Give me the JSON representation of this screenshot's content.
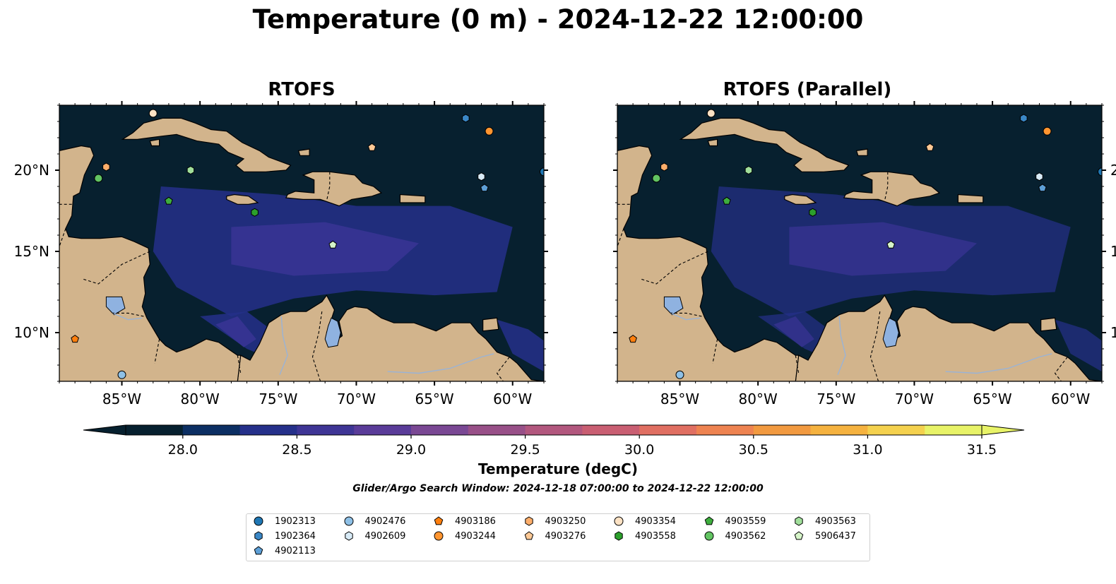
{
  "figure": {
    "title": "Temperature (0 m) - 2024-12-22 12:00:00",
    "search_window": "Glider/Argo Search Window: 2024-12-18 07:00:00 to 2024-12-22 12:00:00"
  },
  "panels": [
    {
      "title": "RTOFS",
      "lat_ticks_side": "left"
    },
    {
      "title": "RTOFS (Parallel)",
      "lat_ticks_side": "right"
    }
  ],
  "map_extent": {
    "lon_min": -89,
    "lon_max": -58,
    "lat_min": 7,
    "lat_max": 24
  },
  "lon_ticks": [
    {
      "value": -85,
      "label": "85°W"
    },
    {
      "value": -80,
      "label": "80°W"
    },
    {
      "value": -75,
      "label": "75°W"
    },
    {
      "value": -70,
      "label": "70°W"
    },
    {
      "value": -65,
      "label": "65°W"
    },
    {
      "value": -60,
      "label": "60°W"
    }
  ],
  "lat_ticks": [
    {
      "value": 20,
      "label": "20°N"
    },
    {
      "value": 15,
      "label": "15°N"
    },
    {
      "value": 10,
      "label": "10°N"
    }
  ],
  "colorbar": {
    "label": "Temperature (degC)",
    "vmin": 27.75,
    "vmax": 31.5,
    "extend": "both",
    "ticks": [
      {
        "value": 28.0,
        "label": "28.0"
      },
      {
        "value": 28.5,
        "label": "28.5"
      },
      {
        "value": 29.0,
        "label": "29.0"
      },
      {
        "value": 29.5,
        "label": "29.5"
      },
      {
        "value": 30.0,
        "label": "30.0"
      },
      {
        "value": 30.5,
        "label": "30.5"
      },
      {
        "value": 31.0,
        "label": "31.0"
      },
      {
        "value": 31.5,
        "label": "31.5"
      }
    ],
    "colors": [
      "#06202f",
      "#0c2f63",
      "#25308a",
      "#3e3595",
      "#5a3c99",
      "#7a4894",
      "#985088",
      "#b2577e",
      "#c95e72",
      "#e06f62",
      "#ee8351",
      "#f29a40",
      "#f5b23f",
      "#f4d14e",
      "#e8f368"
    ],
    "under_color": "#06202f",
    "over_color": "#e8f368"
  },
  "colors": {
    "ocean_cool": "#07202f",
    "ocean_warm": "#3a3595",
    "land": "#d2b48c",
    "lakes": "#8fb2e0"
  },
  "legend": [
    {
      "id": "1902313",
      "marker": "circle",
      "color": "#1f77b4"
    },
    {
      "id": "1902364",
      "marker": "hexagon",
      "color": "#3a87c6"
    },
    {
      "id": "4902113",
      "marker": "pentagon",
      "color": "#5d9fd6"
    },
    {
      "id": "4902476",
      "marker": "circle",
      "color": "#8ec0e6"
    },
    {
      "id": "4902609",
      "marker": "hexagon",
      "color": "#d8ebf7"
    },
    {
      "id": "4903186",
      "marker": "pentagon",
      "color": "#ff7f0e"
    },
    {
      "id": "4903244",
      "marker": "circle",
      "color": "#ff9530"
    },
    {
      "id": "4903250",
      "marker": "hexagon",
      "color": "#fdae6b"
    },
    {
      "id": "4903276",
      "marker": "pentagon",
      "color": "#fdc996"
    },
    {
      "id": "4903354",
      "marker": "circle",
      "color": "#fde2c4"
    },
    {
      "id": "4903558",
      "marker": "hexagon",
      "color": "#2ca02c"
    },
    {
      "id": "4903559",
      "marker": "pentagon",
      "color": "#3eae3e"
    },
    {
      "id": "4903562",
      "marker": "circle",
      "color": "#62c462"
    },
    {
      "id": "4903563",
      "marker": "hexagon",
      "color": "#a1df9b"
    },
    {
      "id": "5906437",
      "marker": "pentagon",
      "color": "#d6f5c9"
    }
  ],
  "floats": [
    {
      "id": "4903354",
      "lon": -83.0,
      "lat": 23.5
    },
    {
      "id": "1902364",
      "lon": -63.0,
      "lat": 23.2
    },
    {
      "id": "4903244",
      "lon": -61.5,
      "lat": 22.4
    },
    {
      "id": "4903276",
      "lon": -69.0,
      "lat": 21.4
    },
    {
      "id": "4903250",
      "lon": -86.0,
      "lat": 20.2
    },
    {
      "id": "4903563",
      "lon": -80.6,
      "lat": 20.0
    },
    {
      "id": "4903562",
      "lon": -86.5,
      "lat": 19.5
    },
    {
      "id": "4902609",
      "lon": -62.0,
      "lat": 19.6
    },
    {
      "id": "1902313",
      "lon": -58.0,
      "lat": 19.9
    },
    {
      "id": "4902113",
      "lon": -61.8,
      "lat": 18.9
    },
    {
      "id": "4903559",
      "lon": -82.0,
      "lat": 18.1
    },
    {
      "id": "4903558",
      "lon": -76.5,
      "lat": 17.4
    },
    {
      "id": "5906437",
      "lon": -71.5,
      "lat": 15.4
    },
    {
      "id": "4903186",
      "lon": -88.0,
      "lat": 9.6
    },
    {
      "id": "4902476",
      "lon": -85.0,
      "lat": 7.4
    }
  ]
}
